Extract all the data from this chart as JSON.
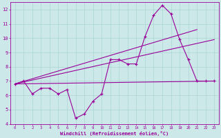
{
  "title": "",
  "xlabel": "Windchill (Refroidissement éolien,°C)",
  "ylabel": "",
  "bg_color": "#cce8e8",
  "grid_color": "#aad4d4",
  "line_color": "#990099",
  "x_values": [
    0,
    1,
    2,
    3,
    4,
    5,
    6,
    7,
    8,
    9,
    10,
    11,
    12,
    13,
    14,
    15,
    16,
    17,
    18,
    19,
    20,
    21,
    22,
    23
  ],
  "main_line": [
    6.8,
    7.0,
    6.1,
    6.5,
    6.5,
    6.1,
    6.4,
    4.4,
    4.7,
    5.6,
    6.1,
    8.5,
    8.5,
    8.2,
    8.2,
    10.1,
    11.6,
    12.3,
    11.7,
    9.9,
    8.5,
    7.0,
    7.0,
    7.0
  ],
  "flat_line": [
    [
      0,
      6.8
    ],
    [
      23,
      7.0
    ]
  ],
  "diag_line1": [
    [
      0,
      6.8
    ],
    [
      21,
      10.6
    ]
  ],
  "diag_line2": [
    [
      0,
      6.8
    ],
    [
      23,
      9.9
    ]
  ],
  "ylim": [
    4,
    12.5
  ],
  "xlim": [
    -0.5,
    23.5
  ]
}
